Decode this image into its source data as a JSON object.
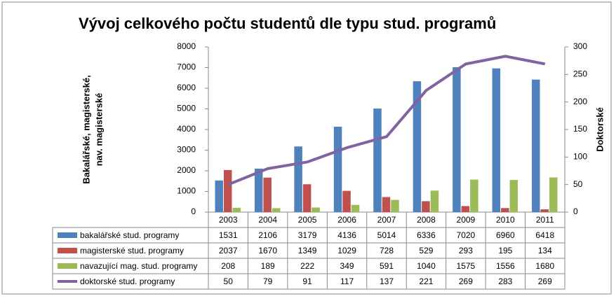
{
  "chart_data": {
    "type": "bar",
    "title": "Vývoj celkového počtu studentů dle typu stud. programů",
    "y_label": [
      "Bakalářské, magisterské,",
      "nav. magisterské"
    ],
    "y2_label": "Doktorské",
    "categories": [
      "2003",
      "2004",
      "2005",
      "2006",
      "2007",
      "2008",
      "2009",
      "2010",
      "2011"
    ],
    "series": [
      {
        "name": "bakalářské stud. programy",
        "color": "#4f81bd",
        "values": [
          1531,
          2106,
          3179,
          4136,
          5014,
          6336,
          7020,
          6960,
          6418
        ]
      },
      {
        "name": "magisterské stud. programy",
        "color": "#c0504d",
        "values": [
          2037,
          1670,
          1349,
          1029,
          728,
          529,
          293,
          195,
          134
        ]
      },
      {
        "name": "navazující mag. stud. programy",
        "color": "#9bbb59",
        "values": [
          208,
          189,
          222,
          349,
          591,
          1040,
          1575,
          1556,
          1680
        ]
      },
      {
        "name": "doktorské stud. programy",
        "color": "#8064a2",
        "type": "line",
        "axis": "y2",
        "values": [
          50,
          79,
          91,
          117,
          137,
          221,
          269,
          283,
          269
        ]
      }
    ],
    "ylim": [
      0,
      8000
    ],
    "yticks": [
      0,
      1000,
      2000,
      3000,
      4000,
      5000,
      6000,
      7000,
      8000
    ],
    "y2lim": [
      0,
      300
    ],
    "y2ticks": [
      0,
      50,
      100,
      150,
      200,
      250,
      300
    ],
    "grid": false
  }
}
